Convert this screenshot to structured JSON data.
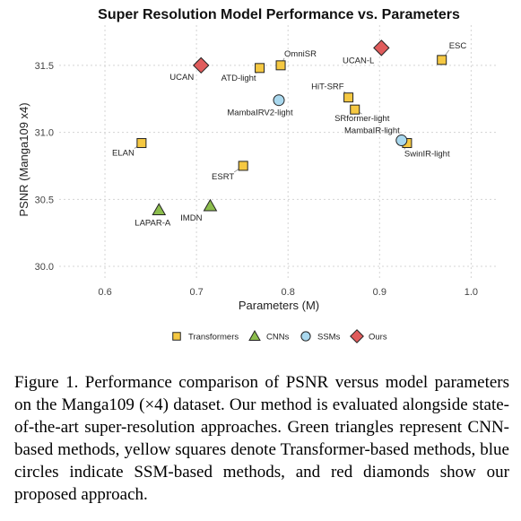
{
  "chart_data": {
    "type": "scatter",
    "title": "Super Resolution Model Performance vs. Parameters",
    "xlabel": "Parameters (M)",
    "ylabel": "PSNR (Manga109 x4)",
    "xlim": [
      0.55,
      1.03
    ],
    "ylim": [
      29.9,
      31.8
    ],
    "xticks": [
      "0.6",
      "0.7",
      "0.8",
      "0.9",
      "1.0"
    ],
    "yticks": [
      "30.0",
      "30.5",
      "31.0",
      "31.5"
    ],
    "grid": true,
    "legend_position": "bottom",
    "series": [
      {
        "name": "Transformers",
        "marker": "square",
        "color": "#f5c842",
        "points": [
          {
            "label": "OmniSR",
            "x": 0.792,
            "y": 31.5
          },
          {
            "label": "ATD-light",
            "x": 0.769,
            "y": 31.48
          },
          {
            "label": "ESC",
            "x": 0.968,
            "y": 31.54
          },
          {
            "label": "HiT-SRF",
            "x": 0.866,
            "y": 31.26
          },
          {
            "label": "SRformer-light",
            "x": 0.873,
            "y": 31.17
          },
          {
            "label": "SwinIR-light",
            "x": 0.93,
            "y": 30.92
          },
          {
            "label": "ELAN",
            "x": 0.64,
            "y": 30.92
          },
          {
            "label": "ESRT",
            "x": 0.751,
            "y": 30.75
          }
        ]
      },
      {
        "name": "CNNs",
        "marker": "triangle",
        "color": "#8cbd4d",
        "points": [
          {
            "label": "LAPAR-A",
            "x": 0.659,
            "y": 30.42
          },
          {
            "label": "IMDN",
            "x": 0.715,
            "y": 30.45
          }
        ]
      },
      {
        "name": "SSMs",
        "marker": "circle",
        "color": "#a9d8ee",
        "points": [
          {
            "label": "MambaIRV2-light",
            "x": 0.79,
            "y": 31.24
          },
          {
            "label": "MambaIR-light",
            "x": 0.924,
            "y": 30.94
          }
        ]
      },
      {
        "name": "Ours",
        "marker": "diamond",
        "color": "#e05c5c",
        "points": [
          {
            "label": "UCAN",
            "x": 0.705,
            "y": 31.5
          },
          {
            "label": "UCAN-L",
            "x": 0.902,
            "y": 31.63
          }
        ]
      }
    ]
  },
  "caption": "Figure 1. Performance comparison of PSNR versus model parameters on the Manga109 (×4) dataset. Our method is evaluated alongside state-of-the-art super-resolution approaches. Green triangles represent CNN-based methods, yellow squares denote Transformer-based methods, blue circles indicate SSM-based methods, and red diamonds show our proposed approach."
}
